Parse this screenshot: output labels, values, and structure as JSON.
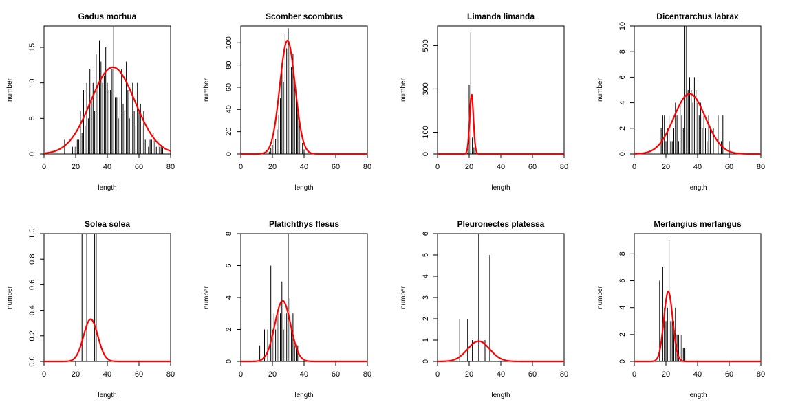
{
  "chart_data": [
    {
      "type": "histogram-with-density",
      "title": "Gadus morhua",
      "xlabel": "length",
      "ylabel": "number",
      "xlim": [
        0,
        80
      ],
      "ylim": [
        0,
        18
      ],
      "xticks": [
        0,
        20,
        40,
        60,
        80
      ],
      "yticks": [
        0,
        5,
        10,
        15
      ],
      "series": [
        {
          "kind": "bars",
          "x": [
            13,
            18,
            19,
            20,
            21,
            22,
            23,
            24,
            25,
            26,
            27,
            28,
            29,
            30,
            31,
            32,
            33,
            34,
            35,
            36,
            37,
            38,
            39,
            40,
            41,
            42,
            43,
            44,
            45,
            46,
            47,
            48,
            49,
            50,
            51,
            52,
            53,
            54,
            55,
            56,
            57,
            58,
            59,
            60,
            61,
            62,
            63,
            64,
            65,
            66,
            67,
            68,
            69,
            70,
            71,
            72,
            73,
            74,
            75,
            80
          ],
          "y": [
            2,
            1,
            1,
            1,
            2,
            2,
            6,
            3,
            9,
            4,
            10,
            5,
            12,
            8,
            10,
            6,
            14,
            10,
            16,
            13,
            10,
            11,
            15,
            10,
            9,
            9,
            12,
            18,
            8,
            8,
            5,
            8,
            12,
            7,
            6,
            13,
            9,
            5,
            10,
            10,
            6,
            4,
            10,
            6,
            7,
            4,
            6,
            2,
            4,
            1,
            2,
            2,
            3,
            2,
            1,
            2,
            1,
            1,
            1,
            1
          ]
        },
        {
          "kind": "density",
          "mean": 43.5,
          "sd": 14,
          "peak": 12.2
        }
      ]
    },
    {
      "type": "histogram-with-density",
      "title": "Scomber scombrus",
      "xlabel": "length",
      "ylabel": "number",
      "xlim": [
        0,
        80
      ],
      "ylim": [
        0,
        115
      ],
      "xticks": [
        0,
        20,
        40,
        60,
        80
      ],
      "yticks": [
        0,
        20,
        40,
        60,
        80,
        100
      ],
      "series": [
        {
          "kind": "bars",
          "x": [
            18,
            19,
            20,
            21,
            22,
            23,
            24,
            25,
            26,
            27,
            28,
            29,
            30,
            31,
            32,
            33,
            34,
            35,
            36,
            37,
            38,
            39,
            40
          ],
          "y": [
            2,
            5,
            8,
            15,
            13,
            22,
            35,
            50,
            82,
            65,
            108,
            95,
            113,
            100,
            78,
            90,
            63,
            55,
            40,
            30,
            20,
            10,
            4
          ]
        },
        {
          "kind": "density",
          "mean": 29.5,
          "sd": 4.8,
          "peak": 102
        }
      ]
    },
    {
      "type": "histogram-with-density",
      "title": "Limanda limanda",
      "xlabel": "length",
      "ylabel": "number",
      "xlim": [
        0,
        80
      ],
      "ylim": [
        0,
        590
      ],
      "xticks": [
        0,
        20,
        40,
        60,
        80
      ],
      "yticks": [
        0,
        100,
        300,
        500
      ],
      "series": [
        {
          "kind": "bars",
          "x": [
            19,
            20,
            21,
            22,
            23,
            24
          ],
          "y": [
            5,
            320,
            560,
            75,
            30,
            5
          ]
        },
        {
          "kind": "density",
          "mean": 21.5,
          "sd": 1.2,
          "peak": 275
        }
      ]
    },
    {
      "type": "histogram-with-density",
      "title": "Dicentrarchus labrax",
      "xlabel": "length",
      "ylabel": "number",
      "xlim": [
        0,
        80
      ],
      "ylim": [
        0,
        10
      ],
      "xticks": [
        0,
        20,
        40,
        60,
        80
      ],
      "yticks": [
        0,
        2,
        4,
        6,
        8,
        10
      ],
      "series": [
        {
          "kind": "bars",
          "x": [
            17,
            18,
            19,
            20,
            21,
            22,
            23,
            24,
            25,
            26,
            27,
            28,
            29,
            30,
            31,
            32,
            33,
            34,
            35,
            36,
            37,
            38,
            39,
            40,
            41,
            42,
            43,
            44,
            45,
            46,
            47,
            48,
            50,
            53,
            55,
            56,
            60
          ],
          "y": [
            2,
            3,
            3,
            1,
            2,
            3,
            1,
            1,
            2,
            4,
            3,
            1,
            4,
            3,
            2,
            10,
            10,
            5,
            6,
            5,
            4,
            6,
            5,
            4,
            3,
            4,
            2,
            3,
            2,
            1,
            3,
            2,
            2,
            3,
            1,
            3,
            1
          ]
        },
        {
          "kind": "density",
          "mean": 35,
          "sd": 10,
          "peak": 4.7
        }
      ]
    },
    {
      "type": "histogram-with-density",
      "title": "Solea solea",
      "xlabel": "length",
      "ylabel": "number",
      "xlim": [
        0,
        80
      ],
      "ylim": [
        0,
        1
      ],
      "xticks": [
        0,
        20,
        40,
        60,
        80
      ],
      "yticks": [
        "0.0",
        "0.2",
        "0.4",
        "0.6",
        "0.8",
        "1.0"
      ],
      "series": [
        {
          "kind": "bars",
          "x": [
            24,
            27,
            32,
            33
          ],
          "y": [
            1,
            1,
            1,
            1
          ]
        },
        {
          "kind": "density",
          "mean": 29.5,
          "sd": 4.5,
          "peak": 0.33
        }
      ]
    },
    {
      "type": "histogram-with-density",
      "title": "Platichthys flesus",
      "xlabel": "length",
      "ylabel": "number",
      "xlim": [
        0,
        80
      ],
      "ylim": [
        0,
        8
      ],
      "xticks": [
        0,
        20,
        40,
        60,
        80
      ],
      "yticks": [
        0,
        2,
        4,
        6,
        8
      ],
      "series": [
        {
          "kind": "bars",
          "x": [
            12,
            15,
            17,
            19,
            20,
            21,
            22,
            23,
            24,
            25,
            26,
            27,
            28,
            29,
            30,
            31,
            32,
            33,
            34,
            35,
            36
          ],
          "y": [
            1,
            2,
            2,
            6,
            2,
            3,
            2,
            3,
            3,
            3,
            5,
            2,
            3,
            3,
            8,
            4,
            2,
            3,
            1,
            1,
            1
          ]
        },
        {
          "kind": "density",
          "mean": 26.5,
          "sd": 5,
          "peak": 3.8
        }
      ]
    },
    {
      "type": "histogram-with-density",
      "title": "Pleuronectes platessa",
      "xlabel": "length",
      "ylabel": "number",
      "xlim": [
        0,
        80
      ],
      "ylim": [
        0,
        6
      ],
      "xticks": [
        0,
        20,
        40,
        60,
        80
      ],
      "yticks": [
        0,
        1,
        2,
        3,
        4,
        5,
        6
      ],
      "series": [
        {
          "kind": "bars",
          "x": [
            14,
            19,
            22,
            26,
            30,
            33
          ],
          "y": [
            2,
            2,
            1,
            6,
            1,
            5
          ]
        },
        {
          "kind": "density",
          "mean": 26,
          "sd": 7,
          "peak": 0.95
        }
      ]
    },
    {
      "type": "histogram-with-density",
      "title": "Merlangius merlangus",
      "xlabel": "length",
      "ylabel": "number",
      "xlim": [
        0,
        80
      ],
      "ylim": [
        0,
        9.5
      ],
      "xticks": [
        0,
        20,
        40,
        60,
        80
      ],
      "yticks": [
        0,
        2,
        4,
        6,
        8
      ],
      "series": [
        {
          "kind": "bars",
          "x": [
            16,
            18,
            19,
            20,
            21,
            22,
            23,
            24,
            25,
            26,
            27,
            28,
            29,
            30,
            31,
            32
          ],
          "y": [
            6,
            7,
            4,
            3,
            4,
            9,
            3,
            3,
            3,
            4,
            2,
            2,
            2,
            2,
            1,
            1
          ]
        },
        {
          "kind": "density",
          "mean": 21.5,
          "sd": 2.8,
          "peak": 5.2
        }
      ]
    }
  ]
}
